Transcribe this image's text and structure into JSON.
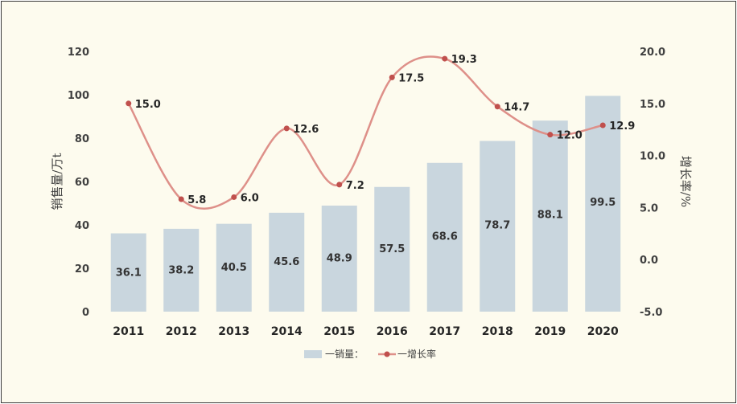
{
  "chart_data": {
    "type": "bar+line",
    "categories": [
      "2011",
      "2012",
      "2013",
      "2014",
      "2015",
      "2016",
      "2017",
      "2018",
      "2019",
      "2020"
    ],
    "series": [
      {
        "name": "一销量：",
        "type": "bar",
        "axis": "left",
        "values": [
          36.1,
          38.2,
          40.5,
          45.6,
          48.9,
          57.5,
          68.6,
          78.7,
          88.1,
          99.5
        ]
      },
      {
        "name": "一增长率",
        "type": "line",
        "axis": "right",
        "values": [
          15.0,
          5.8,
          6.0,
          12.6,
          7.2,
          17.5,
          19.3,
          14.7,
          12.0,
          12.9
        ]
      }
    ],
    "ylabel": "销售量/万t",
    "y2label": "增长率/%",
    "ylim": [
      0,
      120
    ],
    "y2lim": [
      -5.0,
      20.0
    ],
    "yticks": [
      "0",
      "20",
      "40",
      "60",
      "80",
      "100",
      "120"
    ],
    "y2ticks": [
      "-5.0",
      "0.0",
      "5.0",
      "10.0",
      "15.0",
      "20.0"
    ],
    "legend_position": "bottom",
    "colors": {
      "bar": "#c9d6de",
      "line": "#de9089",
      "marker": "#c0504d",
      "background": "#fdfbee",
      "border": "#3a3a3a"
    }
  }
}
